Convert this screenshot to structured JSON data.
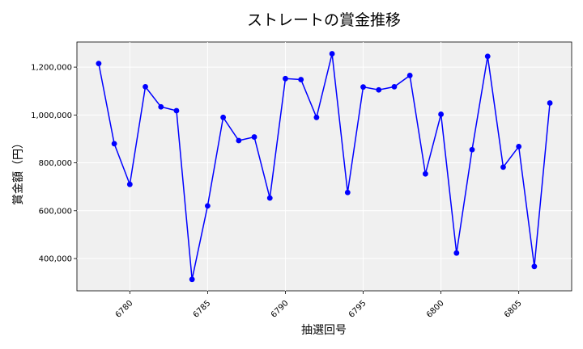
{
  "chart_data": {
    "type": "line",
    "title": "ストレートの賞金推移",
    "xlabel": "抽選回号",
    "ylabel": "賞金額（円）",
    "xlim": [
      6776.6,
      6808.4
    ],
    "ylim": [
      265000,
      1305000
    ],
    "xticks": [
      6780,
      6785,
      6790,
      6795,
      6800,
      6805
    ],
    "yticks": [
      400000,
      600000,
      800000,
      1000000,
      1200000
    ],
    "ytick_labels": [
      "400,000",
      "600,000",
      "800,000",
      "1,000,000",
      "1,200,000"
    ],
    "grid": true,
    "line_color": "#0000ff",
    "plot_background": "#f0f0f0",
    "series": [
      {
        "x": [
          6778,
          6779,
          6780,
          6781,
          6782,
          6783,
          6784,
          6785,
          6786,
          6787,
          6788,
          6789,
          6790,
          6791,
          6792,
          6793,
          6794,
          6795,
          6796,
          6797,
          6798,
          6799,
          6800,
          6801,
          6802,
          6803,
          6804,
          6805,
          6806,
          6807
        ],
        "values": [
          1215000,
          880000,
          710000,
          1118000,
          1034000,
          1018000,
          313000,
          620000,
          990000,
          893000,
          908000,
          653000,
          1152000,
          1148000,
          990000,
          1256000,
          676000,
          1117000,
          1105000,
          1118000,
          1165000,
          754000,
          1003000,
          423000,
          855000,
          1245000,
          782000,
          868000,
          367000,
          1050000
        ]
      }
    ]
  }
}
